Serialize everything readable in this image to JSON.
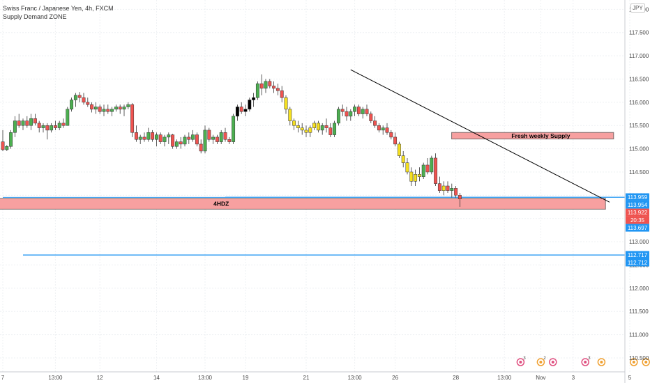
{
  "header": {
    "symbol_line": "Swiss Franc / Japanese Yen, 4h, FXCM",
    "indicator_line": "Supply Demand ZONE",
    "currency_badge": "JPY"
  },
  "chart_data": {
    "type": "candlestick",
    "symbol": "Swiss Franc / Japanese Yen",
    "timeframe": "4h",
    "source": "FXCM",
    "indicator": "Supply Demand ZONE",
    "ylim": [
      110.2,
      118.2
    ],
    "grid": true,
    "price_ticks": [
      "118.000",
      "117.500",
      "117.000",
      "116.500",
      "116.000",
      "115.500",
      "115.000",
      "114.500",
      "114.000",
      "113.500",
      "113.000",
      "112.500",
      "112.000",
      "111.500",
      "111.000",
      "110.500"
    ],
    "x_bars": 155,
    "x_ticks": [
      {
        "label": "7",
        "bar": 0
      },
      {
        "label": "13:00",
        "bar": 13
      },
      {
        "label": "12",
        "bar": 24
      },
      {
        "label": "14",
        "bar": 38
      },
      {
        "label": "13:00",
        "bar": 50
      },
      {
        "label": "19",
        "bar": 60
      },
      {
        "label": "21",
        "bar": 75
      },
      {
        "label": "13:00",
        "bar": 87
      },
      {
        "label": "26",
        "bar": 97
      },
      {
        "label": "28",
        "bar": 112
      },
      {
        "label": "13:00",
        "bar": 124
      },
      {
        "label": "Nov",
        "bar": 133
      },
      {
        "label": "3",
        "bar": 141
      },
      {
        "label": "5",
        "bar": 155
      }
    ],
    "candles": [
      [
        115.15,
        115.4,
        114.95,
        114.98
      ],
      [
        114.98,
        115.08,
        114.95,
        115.05
      ],
      [
        115.05,
        115.4,
        115.0,
        115.35
      ],
      [
        115.35,
        115.7,
        115.25,
        115.6
      ],
      [
        115.6,
        115.75,
        115.45,
        115.5
      ],
      [
        115.5,
        115.65,
        115.4,
        115.6
      ],
      [
        115.6,
        115.7,
        115.45,
        115.5
      ],
      [
        115.5,
        115.75,
        115.4,
        115.65
      ],
      [
        115.65,
        115.75,
        115.5,
        115.55
      ],
      [
        115.55,
        115.6,
        115.35,
        115.45
      ],
      [
        115.45,
        115.55,
        115.35,
        115.5
      ],
      [
        115.5,
        115.55,
        115.2,
        115.4
      ],
      [
        115.4,
        115.55,
        115.35,
        115.5
      ],
      [
        115.5,
        115.6,
        115.4,
        115.45
      ],
      [
        115.45,
        115.6,
        115.4,
        115.55
      ],
      [
        115.55,
        115.65,
        115.45,
        115.5
      ],
      [
        115.5,
        115.9,
        115.5,
        115.85
      ],
      [
        115.85,
        116.1,
        115.8,
        116.05
      ],
      [
        116.05,
        116.2,
        115.9,
        116.15
      ],
      [
        116.15,
        116.22,
        116.0,
        116.1
      ],
      [
        116.1,
        116.2,
        115.95,
        116.0
      ],
      [
        116.0,
        116.1,
        115.9,
        115.95
      ],
      [
        115.95,
        116.0,
        115.78,
        115.85
      ],
      [
        115.85,
        116.0,
        115.75,
        115.9
      ],
      [
        115.9,
        115.95,
        115.75,
        115.8
      ],
      [
        115.8,
        115.95,
        115.7,
        115.85
      ],
      [
        115.85,
        115.95,
        115.75,
        115.8
      ],
      [
        115.8,
        115.9,
        115.7,
        115.85
      ],
      [
        115.85,
        115.95,
        115.8,
        115.9
      ],
      [
        115.9,
        115.95,
        115.75,
        115.85
      ],
      [
        115.85,
        115.95,
        115.7,
        115.9
      ],
      [
        115.9,
        116.0,
        115.85,
        115.95
      ],
      [
        115.95,
        115.98,
        115.25,
        115.35
      ],
      [
        115.35,
        115.5,
        115.15,
        115.2
      ],
      [
        115.2,
        115.3,
        115.1,
        115.25
      ],
      [
        115.25,
        115.35,
        115.15,
        115.2
      ],
      [
        115.2,
        115.45,
        115.15,
        115.35
      ],
      [
        115.35,
        115.4,
        115.15,
        115.2
      ],
      [
        115.2,
        115.35,
        115.05,
        115.3
      ],
      [
        115.3,
        115.35,
        115.1,
        115.15
      ],
      [
        115.15,
        115.3,
        115.05,
        115.25
      ],
      [
        115.25,
        115.35,
        115.1,
        115.3
      ],
      [
        115.3,
        115.32,
        115.0,
        115.05
      ],
      [
        115.05,
        115.2,
        115.0,
        115.15
      ],
      [
        115.15,
        115.25,
        115.0,
        115.1
      ],
      [
        115.1,
        115.3,
        115.05,
        115.25
      ],
      [
        115.25,
        115.35,
        115.1,
        115.2
      ],
      [
        115.2,
        115.4,
        115.15,
        115.3
      ],
      [
        115.3,
        115.35,
        115.05,
        115.1
      ],
      [
        115.1,
        115.2,
        114.9,
        114.95
      ],
      [
        114.95,
        115.5,
        114.9,
        115.4
      ],
      [
        115.4,
        115.45,
        115.15,
        115.2
      ],
      [
        115.2,
        115.3,
        115.1,
        115.25
      ],
      [
        115.25,
        115.3,
        115.1,
        115.15
      ],
      [
        115.15,
        115.4,
        115.1,
        115.35
      ],
      [
        115.35,
        115.45,
        115.15,
        115.2
      ],
      [
        115.2,
        115.25,
        115.1,
        115.15
      ],
      [
        115.15,
        115.75,
        115.1,
        115.7
      ],
      [
        115.7,
        115.95,
        115.6,
        115.9
      ],
      [
        115.9,
        116.0,
        115.75,
        115.8
      ],
      [
        115.8,
        115.95,
        115.7,
        115.85
      ],
      [
        115.85,
        116.1,
        115.8,
        116.05
      ],
      [
        116.05,
        116.2,
        115.9,
        116.1
      ],
      [
        116.1,
        116.45,
        116.05,
        116.4
      ],
      [
        116.4,
        116.6,
        116.15,
        116.3
      ],
      [
        116.3,
        116.5,
        116.2,
        116.45
      ],
      [
        116.45,
        116.5,
        116.3,
        116.35
      ],
      [
        116.35,
        116.45,
        116.2,
        116.3
      ],
      [
        116.3,
        116.4,
        116.15,
        116.25
      ],
      [
        116.25,
        116.35,
        116.0,
        116.1
      ],
      [
        116.1,
        116.15,
        115.75,
        115.85
      ],
      [
        115.85,
        115.9,
        115.5,
        115.6
      ],
      [
        115.6,
        115.65,
        115.4,
        115.5
      ],
      [
        115.5,
        115.6,
        115.35,
        115.45
      ],
      [
        115.45,
        115.55,
        115.3,
        115.4
      ],
      [
        115.4,
        115.5,
        115.25,
        115.35
      ],
      [
        115.35,
        115.5,
        115.25,
        115.45
      ],
      [
        115.45,
        115.6,
        115.4,
        115.55
      ],
      [
        115.55,
        115.6,
        115.35,
        115.4
      ],
      [
        115.4,
        115.55,
        115.3,
        115.5
      ],
      [
        115.5,
        115.65,
        115.35,
        115.45
      ],
      [
        115.45,
        115.55,
        115.25,
        115.3
      ],
      [
        115.3,
        115.6,
        115.25,
        115.55
      ],
      [
        115.55,
        115.9,
        115.5,
        115.85
      ],
      [
        115.85,
        115.95,
        115.7,
        115.8
      ],
      [
        115.8,
        115.9,
        115.6,
        115.7
      ],
      [
        115.7,
        115.85,
        115.6,
        115.8
      ],
      [
        115.8,
        115.95,
        115.7,
        115.9
      ],
      [
        115.9,
        115.95,
        115.7,
        115.75
      ],
      [
        115.75,
        115.9,
        115.65,
        115.85
      ],
      [
        115.85,
        115.95,
        115.7,
        115.75
      ],
      [
        115.75,
        115.8,
        115.55,
        115.6
      ],
      [
        115.6,
        115.7,
        115.45,
        115.5
      ],
      [
        115.5,
        115.55,
        115.35,
        115.4
      ],
      [
        115.4,
        115.5,
        115.3,
        115.45
      ],
      [
        115.45,
        115.55,
        115.3,
        115.35
      ],
      [
        115.35,
        115.4,
        115.2,
        115.25
      ],
      [
        115.25,
        115.35,
        115.05,
        115.1
      ],
      [
        115.1,
        115.15,
        114.8,
        114.85
      ],
      [
        114.85,
        114.95,
        114.6,
        114.7
      ],
      [
        114.7,
        114.8,
        114.45,
        114.5
      ],
      [
        114.5,
        114.6,
        114.2,
        114.3
      ],
      [
        114.3,
        114.55,
        114.2,
        114.45
      ],
      [
        114.45,
        114.6,
        114.3,
        114.4
      ],
      [
        114.4,
        114.7,
        114.35,
        114.65
      ],
      [
        114.65,
        114.8,
        114.45,
        114.5
      ],
      [
        114.5,
        114.85,
        114.45,
        114.8
      ],
      [
        114.8,
        114.9,
        114.2,
        114.25
      ],
      [
        114.25,
        114.4,
        114.05,
        114.1
      ],
      [
        114.1,
        114.3,
        114.0,
        114.2
      ],
      [
        114.2,
        114.3,
        114.05,
        114.1
      ],
      [
        114.1,
        114.25,
        113.95,
        114.15
      ],
      [
        114.15,
        114.2,
        113.95,
        114.0
      ],
      [
        114.0,
        114.05,
        113.75,
        113.92
      ]
    ],
    "candle_bar_offset": 0,
    "levels": [
      {
        "price": 113.959,
        "label": "113.959",
        "from_bar": 55
      },
      {
        "price": 113.954,
        "label": "113.954",
        "from_bar": 0
      },
      {
        "price": 112.717,
        "label": "112.717",
        "from_bar": 5
      },
      {
        "price": 112.712,
        "label": "112.712",
        "from_bar": 5
      }
    ],
    "zones": [
      {
        "label": "Fresh weekly Supply",
        "low": 115.21,
        "high": 115.35,
        "from_bar": 112,
        "to_bar": 151,
        "label_bar": 133
      },
      {
        "label": "4HDZ",
        "low": 113.7,
        "high": 113.93,
        "from_bar": 0,
        "to_bar": 149,
        "label_bar": 54
      }
    ],
    "trendline": {
      "from": {
        "bar": 86,
        "price": 116.7
      },
      "to": {
        "bar": 150,
        "price": 113.85
      }
    },
    "price_badges": [
      {
        "label": "113.959",
        "price": 113.959,
        "color": "#2196f3"
      },
      {
        "label": "113.954",
        "price": 113.954,
        "color": "#2196f3"
      },
      {
        "label": "113.922",
        "price": 113.922,
        "color": "#ef5350"
      },
      {
        "label": "20:35",
        "price": 113.8,
        "color": "#ef5350"
      },
      {
        "label": "113.697",
        "price": 113.697,
        "color": "#2196f3"
      },
      {
        "label": "112.717",
        "price": 112.717,
        "color": "#2196f3"
      },
      {
        "label": "112.712",
        "price": 112.712,
        "color": "#2196f3"
      }
    ],
    "events": [
      {
        "bar": 128,
        "kind": "cycle",
        "count": "3"
      },
      {
        "bar": 133,
        "kind": "dot",
        "count": "2"
      },
      {
        "bar": 136,
        "kind": "cycle",
        "count": ""
      },
      {
        "bar": 144,
        "kind": "cycle",
        "count": "3"
      },
      {
        "bar": 148,
        "kind": "dot",
        "count": ""
      },
      {
        "bar": 156,
        "kind": "dot",
        "count": ""
      },
      {
        "bar": 159,
        "kind": "dot",
        "count": ""
      }
    ],
    "colors": {
      "up": "#4caf50",
      "down": "#ef5350",
      "yellow": "#f5e020",
      "black": "#000000",
      "zone": "#f7a0a0",
      "zone_border": "#7a6a6a",
      "level": "#2196f3",
      "trend": "#000000",
      "grid": "#eef0f3",
      "text": "#444444"
    }
  }
}
